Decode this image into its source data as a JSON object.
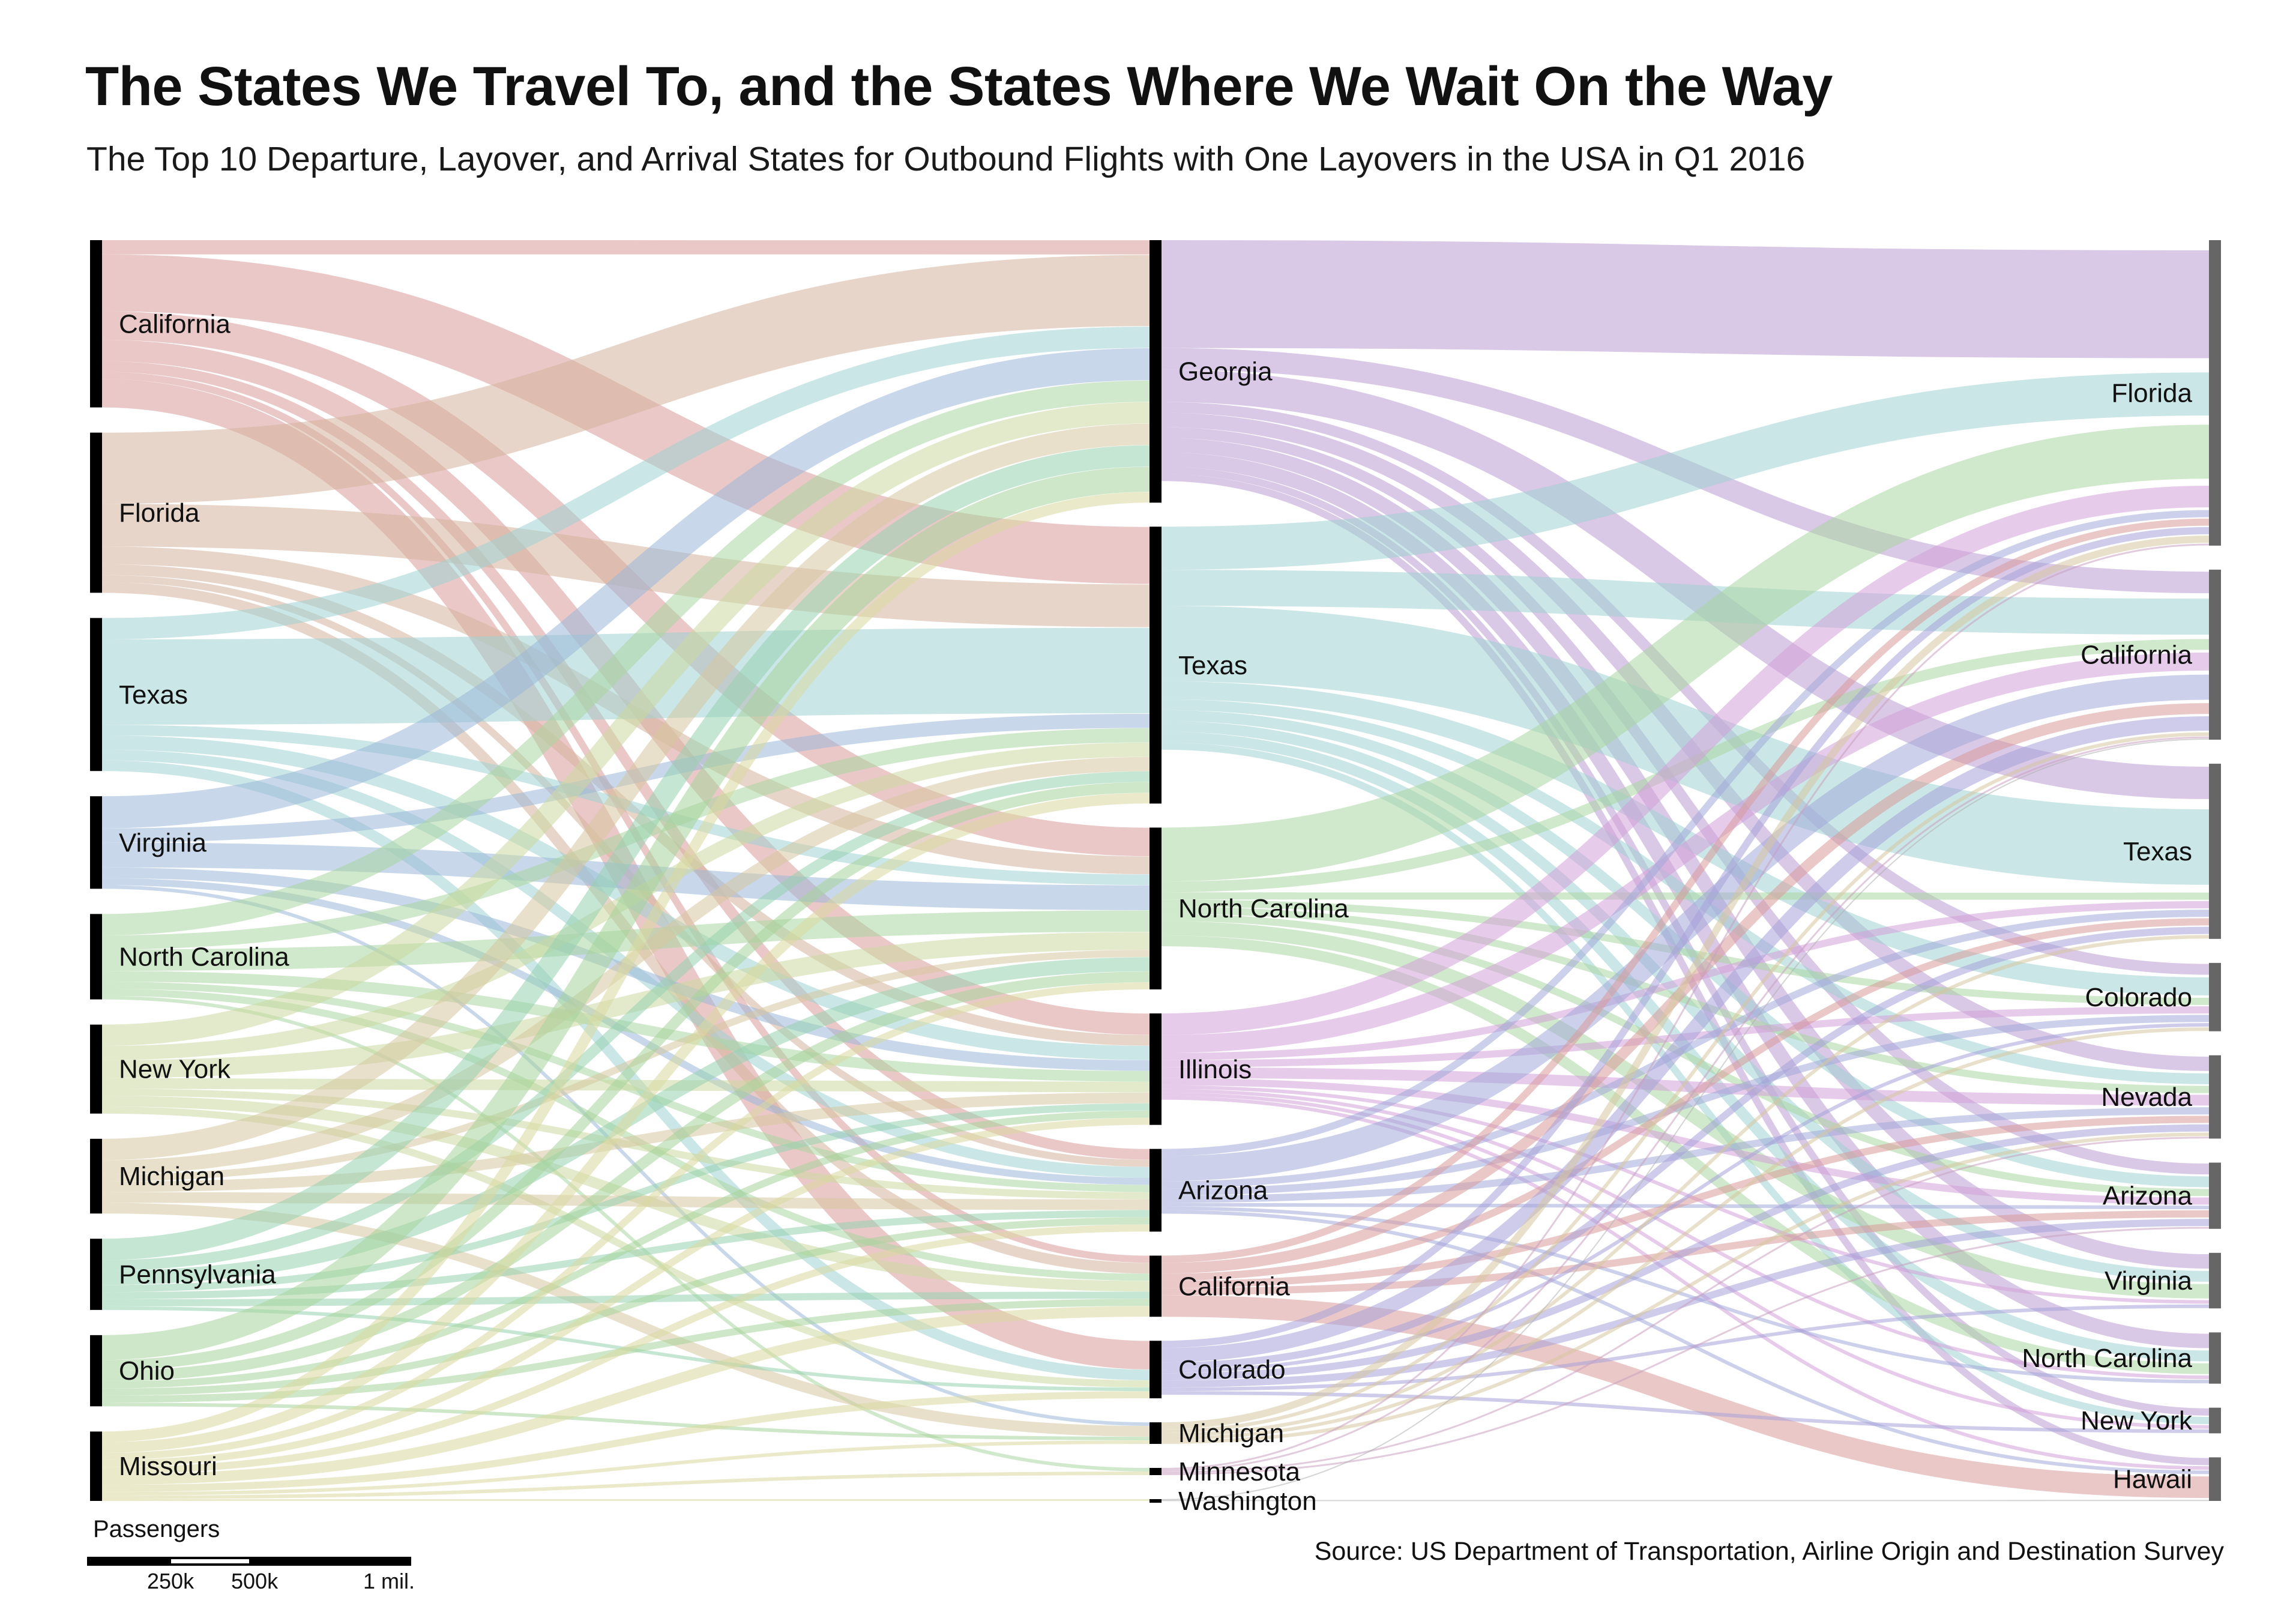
{
  "title": "The States We Travel To, and the States Where We Wait On the Way",
  "subtitle": "The Top 10 Departure, Layover, and Arrival States for Outbound Flights with One Layovers in the USA in Q1 2016",
  "source": "Source: US Department of Transportation, Airline Origin and Destination Survey",
  "legend": {
    "title": "Passengers",
    "ticks": [
      "250k",
      "500k",
      "1 mil."
    ],
    "tick_values": [
      250000,
      500000,
      1000000
    ]
  },
  "colors": {
    "California": "#d99a9a",
    "Florida": "#d6b39c",
    "Texas": "#9fd2d2",
    "Virginia": "#9bb8d8",
    "North Carolina": "#a9d6a0",
    "New York": "#cbd9a0",
    "Michigan": "#d6c6a0",
    "Pennsylvania": "#98d1b0",
    "Ohio": "#a5d49a",
    "Missouri": "#d8d8a0",
    "Georgia": "#b99ad2",
    "Illinois": "#d4a0d8",
    "Arizona": "#a3a9d8",
    "Colorado": "#a6a3d8",
    "Minnesota": "#c9a0c0",
    "Washington": "#b0b0b0",
    "source_bar": "#000000",
    "arrival_bar": "#666666"
  },
  "chart_data": {
    "type": "sankey",
    "units": "passengers",
    "departure_states": [
      "California",
      "Florida",
      "Texas",
      "Virginia",
      "North Carolina",
      "New York",
      "Michigan",
      "Pennsylvania",
      "Ohio",
      "Missouri"
    ],
    "layover_states": [
      "Georgia",
      "Texas",
      "North Carolina",
      "Illinois",
      "Arizona",
      "California",
      "Colorado",
      "Michigan",
      "Minnesota",
      "Washington"
    ],
    "arrival_states": [
      "Florida",
      "California",
      "Texas",
      "Colorado",
      "Nevada",
      "Arizona",
      "Virginia",
      "North Carolina",
      "New York",
      "Hawaii"
    ],
    "departure_to_layover": [
      {
        "from": "California",
        "to": "Georgia",
        "value": 40000
      },
      {
        "from": "California",
        "to": "Texas",
        "value": 160000
      },
      {
        "from": "California",
        "to": "North Carolina",
        "value": 80000
      },
      {
        "from": "California",
        "to": "Illinois",
        "value": 60000
      },
      {
        "from": "California",
        "to": "Arizona",
        "value": 30000
      },
      {
        "from": "California",
        "to": "California",
        "value": 20000
      },
      {
        "from": "California",
        "to": "Colorado",
        "value": 80000
      },
      {
        "from": "Florida",
        "to": "Georgia",
        "value": 200000
      },
      {
        "from": "Florida",
        "to": "Texas",
        "value": 120000
      },
      {
        "from": "Florida",
        "to": "North Carolina",
        "value": 50000
      },
      {
        "from": "Florida",
        "to": "Illinois",
        "value": 30000
      },
      {
        "from": "Florida",
        "to": "Arizona",
        "value": 20000
      },
      {
        "from": "Florida",
        "to": "California",
        "value": 30000
      },
      {
        "from": "Texas",
        "to": "Georgia",
        "value": 60000
      },
      {
        "from": "Texas",
        "to": "Texas",
        "value": 240000
      },
      {
        "from": "Texas",
        "to": "North Carolina",
        "value": 30000
      },
      {
        "from": "Texas",
        "to": "Illinois",
        "value": 40000
      },
      {
        "from": "Texas",
        "to": "Arizona",
        "value": 30000
      },
      {
        "from": "Texas",
        "to": "Colorado",
        "value": 30000
      },
      {
        "from": "Virginia",
        "to": "Georgia",
        "value": 90000
      },
      {
        "from": "Virginia",
        "to": "Texas",
        "value": 40000
      },
      {
        "from": "Virginia",
        "to": "North Carolina",
        "value": 70000
      },
      {
        "from": "Virginia",
        "to": "Illinois",
        "value": 30000
      },
      {
        "from": "Virginia",
        "to": "Arizona",
        "value": 20000
      },
      {
        "from": "Virginia",
        "to": "Michigan",
        "value": 10000
      },
      {
        "from": "North Carolina",
        "to": "Georgia",
        "value": 60000
      },
      {
        "from": "North Carolina",
        "to": "Texas",
        "value": 40000
      },
      {
        "from": "North Carolina",
        "to": "North Carolina",
        "value": 60000
      },
      {
        "from": "North Carolina",
        "to": "Illinois",
        "value": 30000
      },
      {
        "from": "North Carolina",
        "to": "Arizona",
        "value": 20000
      },
      {
        "from": "North Carolina",
        "to": "California",
        "value": 20000
      },
      {
        "from": "North Carolina",
        "to": "Minnesota",
        "value": 10000
      },
      {
        "from": "New York",
        "to": "Georgia",
        "value": 60000
      },
      {
        "from": "New York",
        "to": "Texas",
        "value": 40000
      },
      {
        "from": "New York",
        "to": "North Carolina",
        "value": 50000
      },
      {
        "from": "New York",
        "to": "Illinois",
        "value": 30000
      },
      {
        "from": "New York",
        "to": "Arizona",
        "value": 20000
      },
      {
        "from": "New York",
        "to": "California",
        "value": 30000
      },
      {
        "from": "New York",
        "to": "Colorado",
        "value": 20000
      },
      {
        "from": "Michigan",
        "to": "Georgia",
        "value": 60000
      },
      {
        "from": "Michigan",
        "to": "Texas",
        "value": 40000
      },
      {
        "from": "Michigan",
        "to": "North Carolina",
        "value": 20000
      },
      {
        "from": "Michigan",
        "to": "Illinois",
        "value": 30000
      },
      {
        "from": "Michigan",
        "to": "Arizona",
        "value": 30000
      },
      {
        "from": "Michigan",
        "to": "Michigan",
        "value": 30000
      },
      {
        "from": "Pennsylvania",
        "to": "Georgia",
        "value": 60000
      },
      {
        "from": "Pennsylvania",
        "to": "Texas",
        "value": 30000
      },
      {
        "from": "Pennsylvania",
        "to": "North Carolina",
        "value": 40000
      },
      {
        "from": "Pennsylvania",
        "to": "Illinois",
        "value": 20000
      },
      {
        "from": "Pennsylvania",
        "to": "Arizona",
        "value": 20000
      },
      {
        "from": "Pennsylvania",
        "to": "California",
        "value": 20000
      },
      {
        "from": "Pennsylvania",
        "to": "Colorado",
        "value": 10000
      },
      {
        "from": "Ohio",
        "to": "Georgia",
        "value": 70000
      },
      {
        "from": "Ohio",
        "to": "Texas",
        "value": 30000
      },
      {
        "from": "Ohio",
        "to": "North Carolina",
        "value": 30000
      },
      {
        "from": "Ohio",
        "to": "Illinois",
        "value": 20000
      },
      {
        "from": "Ohio",
        "to": "Arizona",
        "value": 20000
      },
      {
        "from": "Ohio",
        "to": "California",
        "value": 20000
      },
      {
        "from": "Ohio",
        "to": "Michigan",
        "value": 10000
      },
      {
        "from": "Missouri",
        "to": "Georgia",
        "value": 30000
      },
      {
        "from": "Missouri",
        "to": "Texas",
        "value": 30000
      },
      {
        "from": "Missouri",
        "to": "North Carolina",
        "value": 20000
      },
      {
        "from": "Missouri",
        "to": "Illinois",
        "value": 20000
      },
      {
        "from": "Missouri",
        "to": "Arizona",
        "value": 20000
      },
      {
        "from": "Missouri",
        "to": "California",
        "value": 30000
      },
      {
        "from": "Missouri",
        "to": "Colorado",
        "value": 20000
      },
      {
        "from": "Missouri",
        "to": "Michigan",
        "value": 10000
      },
      {
        "from": "Missouri",
        "to": "Minnesota",
        "value": 10000
      },
      {
        "from": "Missouri",
        "to": "Washington",
        "value": 5000
      }
    ],
    "layover_to_arrival": [
      {
        "from": "Georgia",
        "to": "Florida",
        "value": 300000
      },
      {
        "from": "Georgia",
        "to": "California",
        "value": 60000
      },
      {
        "from": "Georgia",
        "to": "Texas",
        "value": 90000
      },
      {
        "from": "Georgia",
        "to": "Colorado",
        "value": 30000
      },
      {
        "from": "Georgia",
        "to": "Nevada",
        "value": 40000
      },
      {
        "from": "Georgia",
        "to": "Arizona",
        "value": 30000
      },
      {
        "from": "Georgia",
        "to": "Virginia",
        "value": 40000
      },
      {
        "from": "Georgia",
        "to": "North Carolina",
        "value": 40000
      },
      {
        "from": "Georgia",
        "to": "New York",
        "value": 20000
      },
      {
        "from": "Georgia",
        "to": "Hawaii",
        "value": 20000
      },
      {
        "from": "Texas",
        "to": "Florida",
        "value": 120000
      },
      {
        "from": "Texas",
        "to": "California",
        "value": 100000
      },
      {
        "from": "Texas",
        "to": "Texas",
        "value": 210000
      },
      {
        "from": "Texas",
        "to": "Colorado",
        "value": 50000
      },
      {
        "from": "Texas",
        "to": "Nevada",
        "value": 30000
      },
      {
        "from": "Texas",
        "to": "Arizona",
        "value": 30000
      },
      {
        "from": "Texas",
        "to": "Virginia",
        "value": 30000
      },
      {
        "from": "Texas",
        "to": "North Carolina",
        "value": 30000
      },
      {
        "from": "Texas",
        "to": "New York",
        "value": 20000
      },
      {
        "from": "North Carolina",
        "to": "Florida",
        "value": 150000
      },
      {
        "from": "North Carolina",
        "to": "California",
        "value": 30000
      },
      {
        "from": "North Carolina",
        "to": "Texas",
        "value": 20000
      },
      {
        "from": "North Carolina",
        "to": "Colorado",
        "value": 20000
      },
      {
        "from": "North Carolina",
        "to": "Nevada",
        "value": 20000
      },
      {
        "from": "North Carolina",
        "to": "Arizona",
        "value": 20000
      },
      {
        "from": "North Carolina",
        "to": "Virginia",
        "value": 40000
      },
      {
        "from": "North Carolina",
        "to": "North Carolina",
        "value": 30000
      },
      {
        "from": "Illinois",
        "to": "Florida",
        "value": 60000
      },
      {
        "from": "Illinois",
        "to": "California",
        "value": 50000
      },
      {
        "from": "Illinois",
        "to": "Texas",
        "value": 20000
      },
      {
        "from": "Illinois",
        "to": "Colorado",
        "value": 20000
      },
      {
        "from": "Illinois",
        "to": "Nevada",
        "value": 30000
      },
      {
        "from": "Illinois",
        "to": "Arizona",
        "value": 20000
      },
      {
        "from": "Illinois",
        "to": "Virginia",
        "value": 10000
      },
      {
        "from": "Illinois",
        "to": "North Carolina",
        "value": 10000
      },
      {
        "from": "Illinois",
        "to": "New York",
        "value": 10000
      },
      {
        "from": "Illinois",
        "to": "Hawaii",
        "value": 10000
      },
      {
        "from": "Arizona",
        "to": "Florida",
        "value": 20000
      },
      {
        "from": "Arizona",
        "to": "California",
        "value": 70000
      },
      {
        "from": "Arizona",
        "to": "Texas",
        "value": 20000
      },
      {
        "from": "Arizona",
        "to": "Colorado",
        "value": 20000
      },
      {
        "from": "Arizona",
        "to": "Nevada",
        "value": 20000
      },
      {
        "from": "Arizona",
        "to": "Arizona",
        "value": 10000
      },
      {
        "from": "Arizona",
        "to": "North Carolina",
        "value": 10000
      },
      {
        "from": "Arizona",
        "to": "Hawaii",
        "value": 10000
      },
      {
        "from": "California",
        "to": "Florida",
        "value": 20000
      },
      {
        "from": "California",
        "to": "California",
        "value": 30000
      },
      {
        "from": "California",
        "to": "Texas",
        "value": 20000
      },
      {
        "from": "California",
        "to": "Nevada",
        "value": 20000
      },
      {
        "from": "California",
        "to": "Arizona",
        "value": 20000
      },
      {
        "from": "California",
        "to": "Hawaii",
        "value": 60000
      },
      {
        "from": "Colorado",
        "to": "Florida",
        "value": 20000
      },
      {
        "from": "Colorado",
        "to": "California",
        "value": 40000
      },
      {
        "from": "Colorado",
        "to": "Texas",
        "value": 20000
      },
      {
        "from": "Colorado",
        "to": "Colorado",
        "value": 10000
      },
      {
        "from": "Colorado",
        "to": "Nevada",
        "value": 20000
      },
      {
        "from": "Colorado",
        "to": "Arizona",
        "value": 20000
      },
      {
        "from": "Colorado",
        "to": "Virginia",
        "value": 10000
      },
      {
        "from": "Colorado",
        "to": "New York",
        "value": 10000
      },
      {
        "from": "Michigan",
        "to": "Florida",
        "value": 20000
      },
      {
        "from": "Michigan",
        "to": "California",
        "value": 10000
      },
      {
        "from": "Michigan",
        "to": "Texas",
        "value": 10000
      },
      {
        "from": "Michigan",
        "to": "Colorado",
        "value": 10000
      },
      {
        "from": "Michigan",
        "to": "Nevada",
        "value": 10000
      },
      {
        "from": "Minnesota",
        "to": "Florida",
        "value": 5000
      },
      {
        "from": "Minnesota",
        "to": "California",
        "value": 5000
      },
      {
        "from": "Minnesota",
        "to": "Arizona",
        "value": 5000
      },
      {
        "from": "Minnesota",
        "to": "Nevada",
        "value": 5000
      },
      {
        "from": "Washington",
        "to": "California",
        "value": 3000
      },
      {
        "from": "Washington",
        "to": "Hawaii",
        "value": 2000
      }
    ]
  }
}
